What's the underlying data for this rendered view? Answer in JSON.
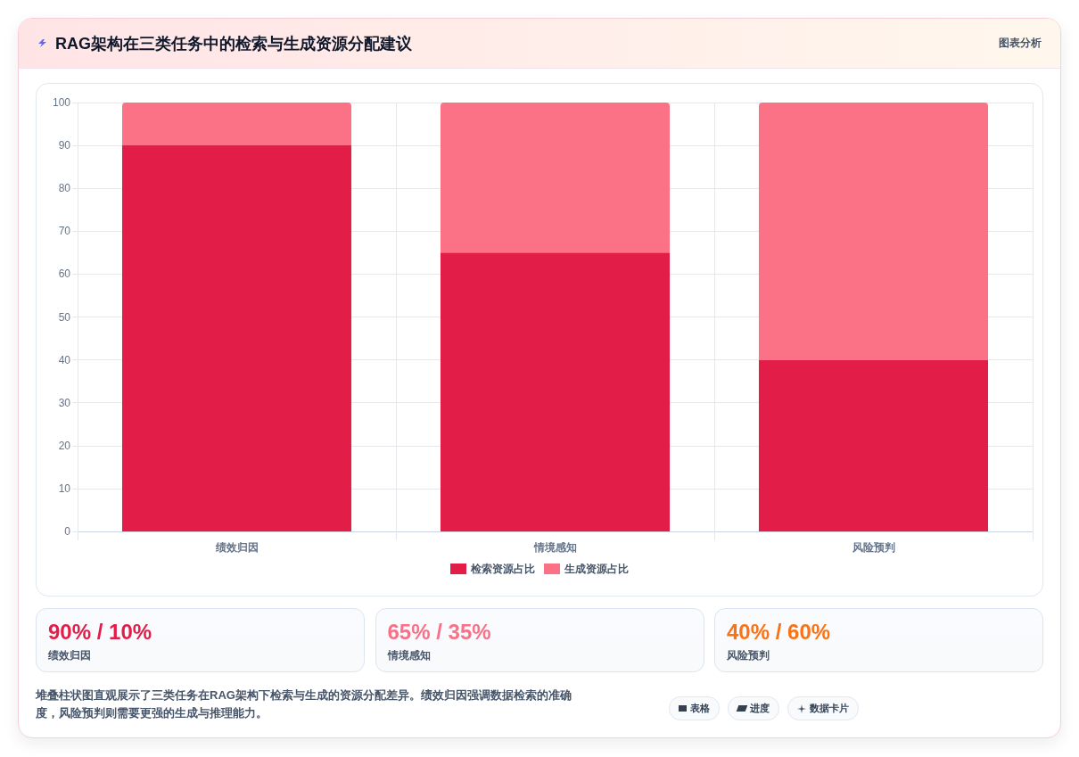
{
  "chart_data": {
    "type": "bar",
    "title": "RAG架构在三类任务中的检索与生成资源分配建议",
    "categories": [
      "绩效归因",
      "情境感知",
      "风险预判"
    ],
    "series": [
      {
        "name": "检索资源占比",
        "color": "#e11d48",
        "values": [
          90,
          65,
          40
        ]
      },
      {
        "name": "生成资源占比",
        "color": "#fb7185",
        "values": [
          10,
          35,
          60
        ]
      }
    ],
    "stacked": true,
    "ylim": [
      0,
      100
    ],
    "yticks": [
      0,
      10,
      20,
      30,
      40,
      50,
      60,
      70,
      80,
      90,
      100
    ],
    "grid": true,
    "legend": "bottom",
    "annotations": [
      "图表分析",
      "90% / 10%",
      "65% / 35%",
      "40% / 60%",
      "堆叠柱状图直观展示了三类任务在RAG架构下检索与生成的资源分配差异。绩效归因强调数据检索的准确度，风险预判则需要更强的生成与推理能力。",
      "表格",
      "进度",
      "数据卡片"
    ]
  }
}
